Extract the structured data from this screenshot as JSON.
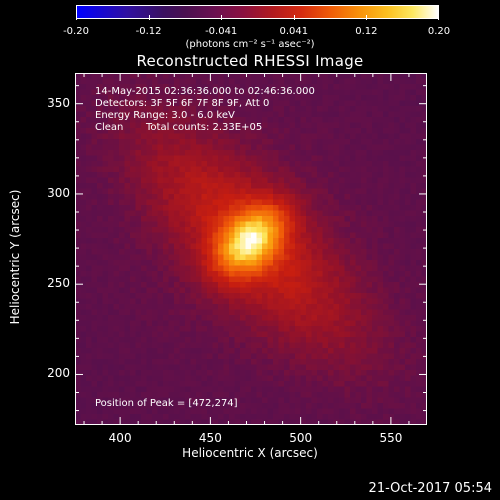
{
  "colorbar": {
    "ticks": [
      "-0.20",
      "-0.12",
      "-0.041",
      "0.041",
      "0.12",
      "0.20"
    ],
    "units": "(photons cm⁻² s⁻¹ asec⁻²)"
  },
  "header": {
    "time_range": "14-May-2015 02:36:36.000 to 02:46:36.000",
    "detectors": "Detectors: 3F 5F 6F 7F 8F 9F, Att 0",
    "energy_range": "Energy Range: 3.0 - 6.0 keV",
    "clean_label": "Clean",
    "total_counts": "Total counts: 2.33E+05"
  },
  "peak": "Position of Peak = [472,274]",
  "footer": {
    "date": "21-Oct-2017 05:54"
  },
  "chart_data": {
    "type": "heatmap",
    "title": "Reconstructed RHESSI Image",
    "xlabel": "Heliocentric X (arcsec)",
    "ylabel": "Heliocentric Y (arcsec)",
    "xlim": [
      375,
      570
    ],
    "ylim": [
      172,
      367
    ],
    "xticks": [
      400,
      450,
      500,
      550
    ],
    "yticks": [
      200,
      250,
      300,
      350
    ],
    "xtick_labels": [
      "400",
      "450",
      "500",
      "550"
    ],
    "ytick_labels": [
      "200",
      "250",
      "300",
      "350"
    ],
    "color_range": [
      -0.2,
      0.2
    ],
    "peak_position": [
      472,
      274
    ],
    "colormap": [
      "#0000ff",
      "#3a1060",
      "#6a1050",
      "#b01a20",
      "#ef5a08",
      "#fcc020",
      "#ffffff"
    ]
  }
}
